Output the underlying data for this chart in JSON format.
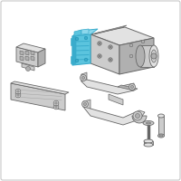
{
  "background_color": "#ffffff",
  "border_color": "#c8c8c8",
  "highlight_blue": "#5bc4de",
  "highlight_blue_top": "#8dd8ec",
  "highlight_blue_dark": "#3aaccc",
  "gray_light": "#e2e2e2",
  "gray_mid": "#cccccc",
  "gray_dark": "#b0b0b0",
  "edge_color": "#888888",
  "edge_dark": "#666666",
  "fig_width": 2.0,
  "fig_height": 2.0,
  "dpi": 100
}
